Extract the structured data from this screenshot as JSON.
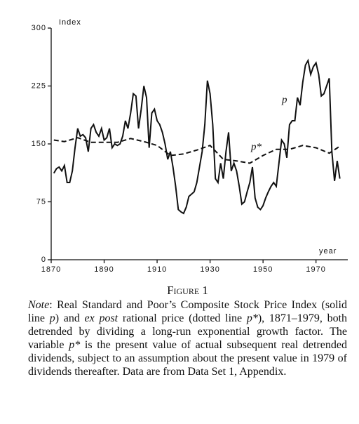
{
  "chart_data": {
    "type": "line",
    "y_label": "Index",
    "x_label": "year",
    "xlim": [
      1870,
      1982
    ],
    "xticks": [
      1870,
      1890,
      1910,
      1930,
      1950,
      1970
    ],
    "ylim": [
      0,
      300
    ],
    "yticks": [
      0,
      75,
      150,
      225,
      300
    ],
    "series": [
      {
        "name": "p",
        "color": "#111111",
        "style": "solid",
        "x": [
          1871,
          1872,
          1873,
          1874,
          1875,
          1876,
          1877,
          1878,
          1879,
          1880,
          1881,
          1882,
          1883,
          1884,
          1885,
          1886,
          1887,
          1888,
          1889,
          1890,
          1891,
          1892,
          1893,
          1894,
          1895,
          1896,
          1897,
          1898,
          1899,
          1900,
          1901,
          1902,
          1903,
          1904,
          1905,
          1906,
          1907,
          1908,
          1909,
          1910,
          1911,
          1912,
          1913,
          1914,
          1915,
          1916,
          1917,
          1918,
          1919,
          1920,
          1921,
          1922,
          1923,
          1924,
          1925,
          1926,
          1927,
          1928,
          1929,
          1930,
          1931,
          1932,
          1933,
          1934,
          1935,
          1936,
          1937,
          1938,
          1939,
          1940,
          1941,
          1942,
          1943,
          1944,
          1945,
          1946,
          1947,
          1948,
          1949,
          1950,
          1951,
          1952,
          1953,
          1954,
          1955,
          1956,
          1957,
          1958,
          1959,
          1960,
          1961,
          1962,
          1963,
          1964,
          1965,
          1966,
          1967,
          1968,
          1969,
          1970,
          1971,
          1972,
          1973,
          1974,
          1975,
          1976,
          1977,
          1978,
          1979
        ],
        "values": [
          112,
          118,
          120,
          115,
          122,
          100,
          100,
          115,
          145,
          170,
          160,
          162,
          158,
          140,
          170,
          175,
          165,
          160,
          170,
          155,
          158,
          170,
          145,
          150,
          148,
          150,
          160,
          180,
          170,
          190,
          215,
          212,
          170,
          195,
          225,
          210,
          145,
          190,
          195,
          180,
          175,
          165,
          150,
          130,
          140,
          120,
          95,
          65,
          62,
          60,
          68,
          82,
          85,
          88,
          100,
          120,
          140,
          175,
          232,
          215,
          175,
          105,
          100,
          125,
          105,
          140,
          165,
          115,
          125,
          115,
          95,
          72,
          75,
          88,
          100,
          120,
          80,
          68,
          65,
          70,
          80,
          88,
          95,
          100,
          95,
          125,
          155,
          150,
          132,
          175,
          180,
          180,
          210,
          200,
          230,
          252,
          258,
          240,
          250,
          255,
          240,
          212,
          215,
          225,
          235,
          140,
          102,
          128,
          105
        ]
      },
      {
        "name": "p*",
        "color": "#111111",
        "style": "dashed",
        "x": [
          1871,
          1875,
          1880,
          1885,
          1890,
          1895,
          1900,
          1905,
          1910,
          1915,
          1920,
          1925,
          1930,
          1935,
          1940,
          1945,
          1950,
          1955,
          1960,
          1965,
          1970,
          1975,
          1979
        ],
        "values": [
          155,
          153,
          158,
          152,
          152,
          152,
          157,
          153,
          148,
          135,
          137,
          142,
          148,
          130,
          128,
          125,
          135,
          143,
          143,
          148,
          145,
          138,
          147
        ]
      }
    ]
  },
  "caption": {
    "title": "Figure 1",
    "note": [
      "Note",
      ": Real Standard and Poor’s Composite Stock Price Index (solid line ",
      "p",
      ") and ",
      "ex post",
      " rational price (dotted line ",
      "p*",
      "), 1871–1979, both detrended by dividing a long-run exponential growth factor. The variable ",
      "p*",
      " is the present value of actual subsequent real detrended dividends, subject to an assumption about the present value in 1979 of dividends thereafter. Data are from Data Set 1, Appendix."
    ]
  }
}
